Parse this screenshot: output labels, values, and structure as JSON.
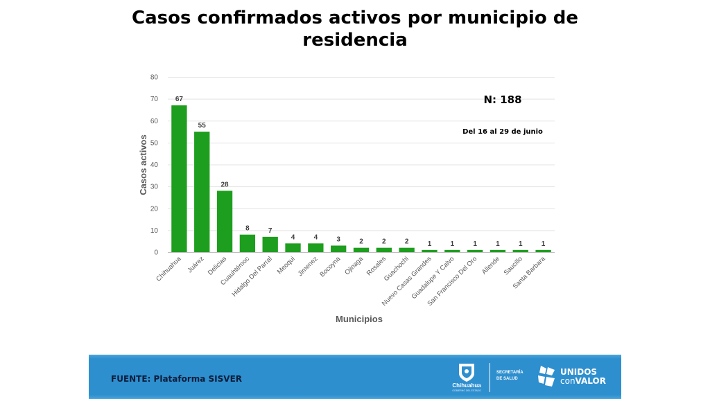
{
  "title_line1": "Casos confirmados activos por municipio de",
  "title_line2": "residencia",
  "chart_data": {
    "type": "bar",
    "categories": [
      "Chihuahua",
      "Juárez",
      "Delicias",
      "Cuauhtémoc",
      "Hidalgo Del Parral",
      "Meoqui",
      "Jimenez",
      "Bocoyna",
      "Ojinaga",
      "Rosales",
      "Guachochi",
      "Nuevo Casas Grandes",
      "Guadalupe Y Calvo",
      "San Francisco Del Oro",
      "Allende",
      "Saucillo",
      "Santa Barbara"
    ],
    "values": [
      67,
      55,
      28,
      8,
      7,
      4,
      4,
      3,
      2,
      2,
      2,
      1,
      1,
      1,
      1,
      1,
      1
    ],
    "xlabel": "Municipios",
    "ylabel": "Casos activos",
    "ylim": [
      0,
      80
    ],
    "yticks": [
      0,
      10,
      20,
      30,
      40,
      50,
      60,
      70,
      80
    ],
    "grid": true,
    "bar_color": "#1e9e1e",
    "annotations": [
      "N: 188",
      "Del 16 al 29 de junio"
    ]
  },
  "footer": {
    "source": "FUENTE: Plataforma SISVER",
    "logo_chihuahua": "Chihuahua",
    "logo_chihuahua_sub": "GOBIERNO DEL ESTADO",
    "secretaria_line1": "SECRETARÍA",
    "secretaria_line2": "DE SALUD",
    "unidos_line1": "UNIDOS",
    "unidos_con": "con",
    "unidos_valor": "VALOR",
    "bar_color": "#2e8fcf"
  }
}
